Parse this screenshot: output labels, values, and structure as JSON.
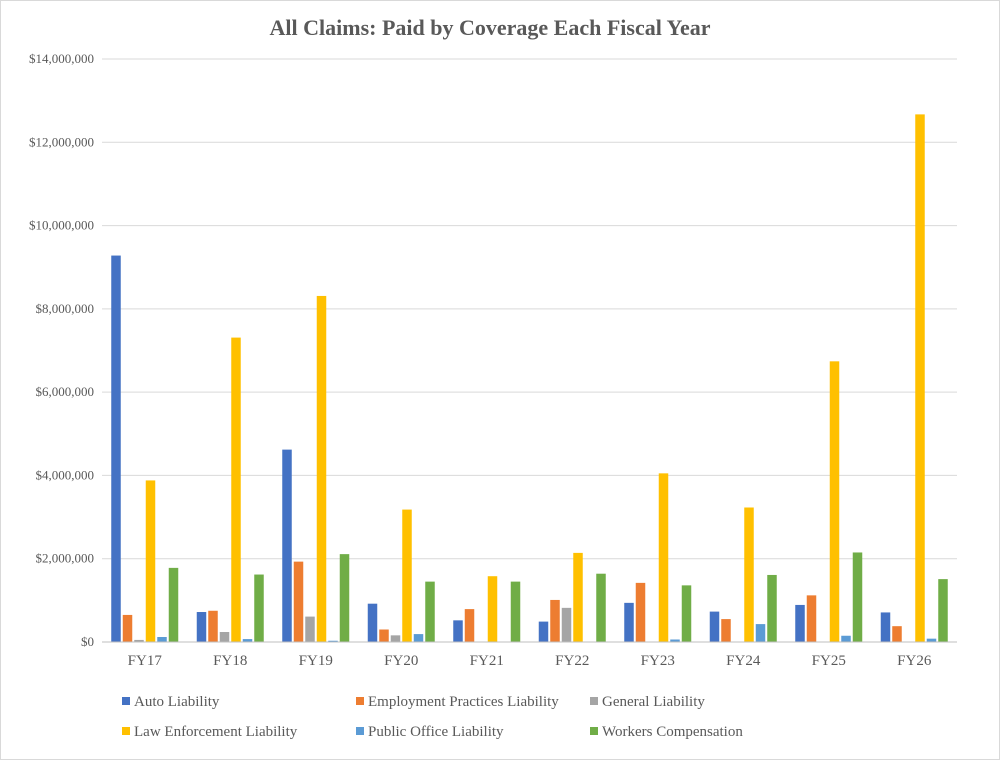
{
  "chart_data": {
    "type": "bar",
    "title": "All Claims: Paid by Coverage Each Fiscal Year",
    "xlabel": "",
    "ylabel": "",
    "ylim": [
      0,
      14000000
    ],
    "yticks": [
      0,
      2000000,
      4000000,
      6000000,
      8000000,
      10000000,
      12000000,
      14000000
    ],
    "ytick_labels": [
      "$0",
      "$2,000,000",
      "$4,000,000",
      "$6,000,000",
      "$8,000,000",
      "$10,000,000",
      "$12,000,000",
      "$14,000,000"
    ],
    "grid": true,
    "legend_position": "bottom",
    "categories": [
      "FY17",
      "FY18",
      "FY19",
      "FY20",
      "FY21",
      "FY22",
      "FY23",
      "FY24",
      "FY25",
      "FY26"
    ],
    "series": [
      {
        "name": "Auto Liability",
        "color": "#4472c4",
        "values": [
          9280000,
          720000,
          4620000,
          920000,
          520000,
          490000,
          940000,
          730000,
          890000,
          710000
        ]
      },
      {
        "name": "Employment Practices Liability",
        "color": "#ed7d31",
        "values": [
          650000,
          750000,
          1930000,
          300000,
          790000,
          1010000,
          1420000,
          550000,
          1120000,
          380000
        ]
      },
      {
        "name": "General Liability",
        "color": "#a5a5a5",
        "values": [
          50000,
          240000,
          610000,
          160000,
          10000,
          820000,
          0,
          0,
          0,
          0
        ]
      },
      {
        "name": "Law Enforcement Liability",
        "color": "#ffc000",
        "values": [
          3880000,
          7310000,
          8310000,
          3180000,
          1580000,
          2140000,
          4050000,
          3230000,
          6740000,
          12670000
        ]
      },
      {
        "name": "Public Office Liability",
        "color": "#5b9bd5",
        "values": [
          120000,
          70000,
          30000,
          190000,
          0,
          0,
          60000,
          430000,
          150000,
          80000
        ]
      },
      {
        "name": "Workers Compensation",
        "color": "#70ad47",
        "values": [
          1780000,
          1620000,
          2110000,
          1450000,
          1450000,
          1640000,
          1360000,
          1610000,
          2150000,
          1510000
        ]
      }
    ]
  }
}
